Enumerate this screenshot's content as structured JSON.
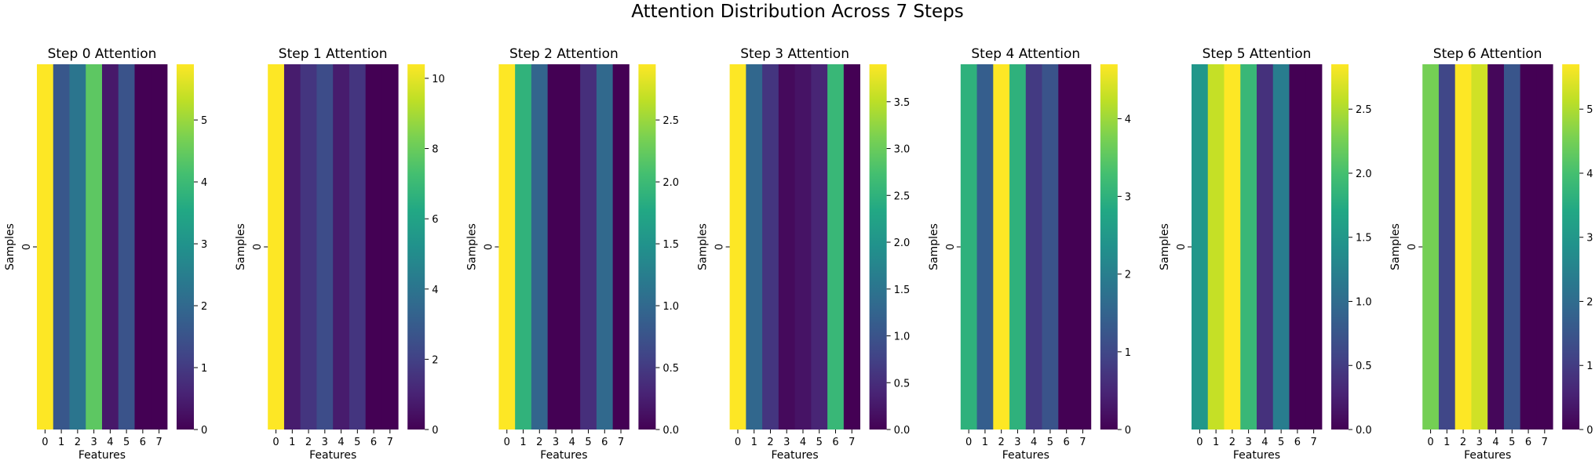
{
  "figure": {
    "title": "Attention Distribution Across 7 Steps"
  },
  "colormap": "viridis",
  "chart_data": [
    {
      "type": "heatmap",
      "title": "Step 0 Attention",
      "xlabel": "Features",
      "ylabel": "Samples",
      "x": [
        "0",
        "1",
        "2",
        "3",
        "4",
        "5",
        "6",
        "7"
      ],
      "y": [
        "0"
      ],
      "values": [
        [
          5.9,
          1.6,
          2.3,
          4.4,
          0.4,
          1.5,
          0.0,
          0.0
        ]
      ],
      "colorbar": {
        "min": 0,
        "max": 5.9,
        "ticks": [
          0,
          1,
          2,
          3,
          4,
          5
        ]
      }
    },
    {
      "type": "heatmap",
      "title": "Step 1 Attention",
      "xlabel": "Features",
      "ylabel": "Samples",
      "x": [
        "0",
        "1",
        "2",
        "3",
        "4",
        "5",
        "6",
        "7"
      ],
      "y": [
        "0"
      ],
      "values": [
        [
          10.4,
          0.8,
          1.6,
          2.4,
          0.8,
          1.6,
          0.0,
          0.0
        ]
      ],
      "colorbar": {
        "min": 0,
        "max": 10.4,
        "ticks": [
          0,
          2,
          4,
          6,
          8,
          10
        ]
      }
    },
    {
      "type": "heatmap",
      "title": "Step 2 Attention",
      "xlabel": "Features",
      "ylabel": "Samples",
      "x": [
        "0",
        "1",
        "2",
        "3",
        "4",
        "5",
        "6",
        "7"
      ],
      "y": [
        "0"
      ],
      "values": [
        [
          2.95,
          1.9,
          0.95,
          0.0,
          0.0,
          0.4,
          1.0,
          0.0
        ]
      ],
      "colorbar": {
        "min": 0,
        "max": 2.95,
        "ticks": [
          0.0,
          0.5,
          1.0,
          1.5,
          2.0,
          2.5
        ]
      }
    },
    {
      "type": "heatmap",
      "title": "Step 3 Attention",
      "xlabel": "Features",
      "ylabel": "Samples",
      "x": [
        "0",
        "1",
        "2",
        "3",
        "4",
        "5",
        "6",
        "7"
      ],
      "y": [
        "0"
      ],
      "values": [
        [
          3.9,
          1.3,
          0.6,
          0.1,
          0.2,
          0.4,
          2.6,
          0.0
        ]
      ],
      "colorbar": {
        "min": 0,
        "max": 3.9,
        "ticks": [
          0.0,
          0.5,
          1.0,
          1.5,
          2.0,
          2.5,
          3.0,
          3.5
        ]
      }
    },
    {
      "type": "heatmap",
      "title": "Step 4 Attention",
      "xlabel": "Features",
      "ylabel": "Samples",
      "x": [
        "0",
        "1",
        "2",
        "3",
        "4",
        "5",
        "6",
        "7"
      ],
      "y": [
        "0"
      ],
      "values": [
        [
          3.0,
          1.4,
          4.7,
          3.0,
          0.8,
          1.2,
          0.0,
          0.0
        ]
      ],
      "colorbar": {
        "min": 0,
        "max": 4.7,
        "ticks": [
          0,
          1,
          2,
          3,
          4
        ]
      }
    },
    {
      "type": "heatmap",
      "title": "Step 5 Attention",
      "xlabel": "Features",
      "ylabel": "Samples",
      "x": [
        "0",
        "1",
        "2",
        "3",
        "4",
        "5",
        "6",
        "7"
      ],
      "y": [
        "0"
      ],
      "values": [
        [
          1.5,
          2.6,
          2.85,
          1.9,
          0.4,
          1.2,
          0.0,
          0.0
        ]
      ],
      "colorbar": {
        "min": 0,
        "max": 2.85,
        "ticks": [
          0.0,
          0.5,
          1.0,
          1.5,
          2.0,
          2.5
        ]
      }
    },
    {
      "type": "heatmap",
      "title": "Step 6 Attention",
      "xlabel": "Features",
      "ylabel": "Samples",
      "x": [
        "0",
        "1",
        "2",
        "3",
        "4",
        "5",
        "6",
        "7"
      ],
      "y": [
        "0"
      ],
      "values": [
        [
          4.5,
          1.2,
          5.7,
          5.3,
          0.1,
          1.5,
          0.0,
          0.0
        ]
      ],
      "colorbar": {
        "min": 0,
        "max": 5.7,
        "ticks": [
          0,
          1,
          2,
          3,
          4,
          5
        ]
      }
    }
  ]
}
